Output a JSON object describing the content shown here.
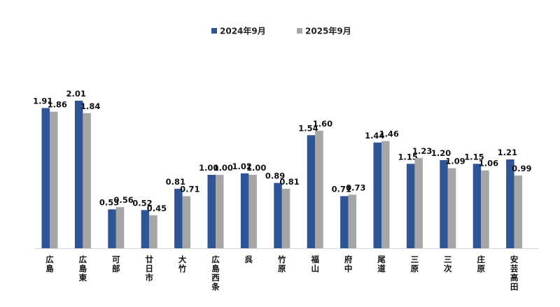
{
  "chart_data": {
    "type": "bar",
    "title": "",
    "xlabel": "",
    "ylabel": "",
    "ylim": [
      0,
      2.3
    ],
    "grid": false,
    "legend_position": "top-center",
    "categories": [
      "広島",
      "広島東",
      "可部",
      "廿日市",
      "大竹",
      "広島西条",
      "呉",
      "竹原",
      "福山",
      "府中",
      "尾道",
      "三原",
      "三次",
      "庄原",
      "安芸高田"
    ],
    "series": [
      {
        "name": "2024年9月",
        "color": "#2f5597",
        "values": [
          1.91,
          2.01,
          0.53,
          0.52,
          0.81,
          1.0,
          1.02,
          0.89,
          1.54,
          0.71,
          1.44,
          1.15,
          1.2,
          1.15,
          1.21
        ],
        "labels": [
          "1.91",
          "2.01",
          "0.53",
          "0.52",
          "0.81",
          "1.00",
          "1.02",
          "0.89",
          "1.54",
          "0.71",
          "1.44",
          "1.15",
          "1.20",
          "1.15",
          "1.21"
        ]
      },
      {
        "name": "2025年9月",
        "color": "#a6a6a6",
        "values": [
          1.86,
          1.84,
          0.56,
          0.45,
          0.71,
          1.0,
          1.0,
          0.81,
          1.6,
          0.73,
          1.46,
          1.23,
          1.09,
          1.06,
          0.99
        ],
        "labels": [
          "1.86",
          "1.84",
          "0.56",
          "0.45",
          "0.71",
          "1.00",
          "1.00",
          "0.81",
          "1.60",
          "0.73",
          "1.46",
          "1.23",
          "1.09",
          "1.06",
          "0.99"
        ]
      }
    ]
  }
}
